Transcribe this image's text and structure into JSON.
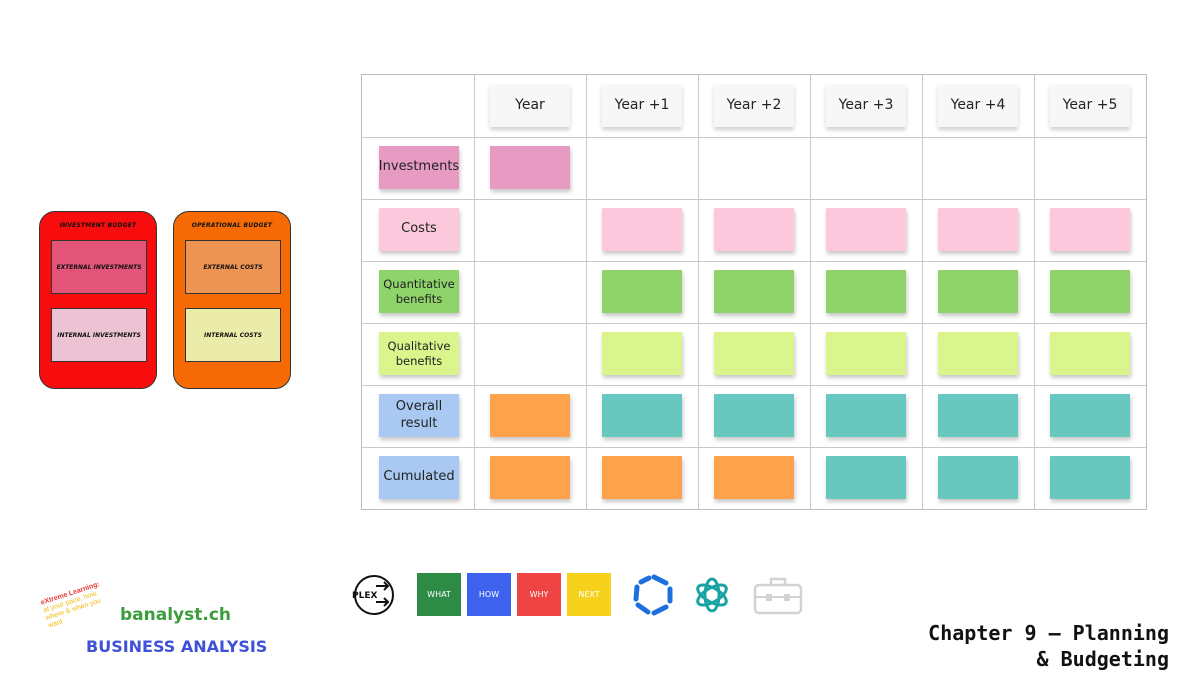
{
  "budgets": {
    "investment": {
      "title": "Investment Budget",
      "items": [
        "External investments",
        "Internal investments"
      ]
    },
    "operational": {
      "title": "Operational Budget",
      "items": [
        "External costs",
        "Internal costs"
      ]
    }
  },
  "grid": {
    "headers": [
      "Year",
      "Year +1",
      "Year +2",
      "Year +3",
      "Year +4",
      "Year +5"
    ],
    "rows": [
      {
        "label": "Investments",
        "color": "#e79ac2"
      },
      {
        "label": "Costs",
        "color": "#fbc8dc"
      },
      {
        "label": "Quantitative benefits",
        "color": "#8fd46b"
      },
      {
        "label": "Qualitative benefits",
        "color": "#d9f58c"
      },
      {
        "label": "Overall result",
        "color": "#a9c9f2"
      },
      {
        "label": "Cumulated",
        "color": "#a9c9f2"
      }
    ]
  },
  "toolbar": {
    "plex_label": "PLEX",
    "tags": [
      {
        "label": "WHAT",
        "color": "#2e8b46"
      },
      {
        "label": "HOW",
        "color": "#3d63ee"
      },
      {
        "label": "WHY",
        "color": "#ef4444"
      },
      {
        "label": "NEXT",
        "color": "#f7d21c"
      }
    ]
  },
  "brand": {
    "tagline_1": "eXtreme Learning:",
    "tagline_2": "at your pace, how, where & when you want",
    "name": "banalyst.ch",
    "subtitle": "BUSINESS ANALYSIS"
  },
  "chapter": {
    "line1": "Chapter 9 – Planning",
    "line2": "& Budgeting"
  }
}
